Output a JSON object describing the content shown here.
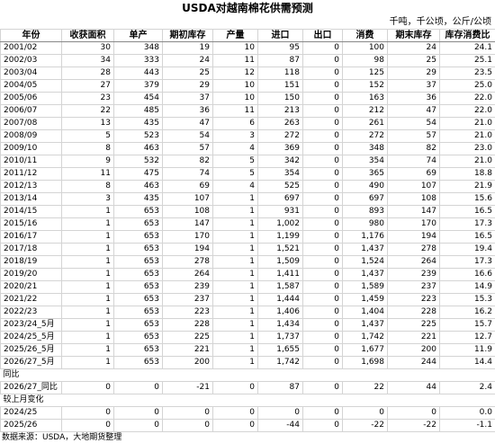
{
  "title": "USDA对越南棉花供需预测",
  "unit": "千吨，千公顷，公斤/公顷",
  "header": [
    "年份",
    "收获面积",
    "单产",
    "期初库存",
    "产量",
    "进口",
    "出口",
    "消费",
    "期末库存",
    "库存消费比"
  ],
  "rows": [
    [
      "2001/02",
      "30",
      "348",
      "19",
      "10",
      "95",
      "0",
      "100",
      "24",
      "24.1"
    ],
    [
      "2002/03",
      "34",
      "333",
      "24",
      "11",
      "87",
      "0",
      "98",
      "25",
      "25.1"
    ],
    [
      "2003/04",
      "28",
      "443",
      "25",
      "12",
      "118",
      "0",
      "125",
      "29",
      "23.5"
    ],
    [
      "2004/05",
      "27",
      "379",
      "29",
      "10",
      "151",
      "0",
      "152",
      "37",
      "25.0"
    ],
    [
      "2005/06",
      "23",
      "454",
      "37",
      "10",
      "150",
      "0",
      "163",
      "36",
      "22.0"
    ],
    [
      "2006/07",
      "22",
      "485",
      "36",
      "11",
      "213",
      "0",
      "212",
      "47",
      "22.0"
    ],
    [
      "2007/08",
      "13",
      "435",
      "47",
      "6",
      "263",
      "0",
      "261",
      "54",
      "21.0"
    ],
    [
      "2008/09",
      "5",
      "523",
      "54",
      "3",
      "272",
      "0",
      "272",
      "57",
      "21.0"
    ],
    [
      "2009/10",
      "8",
      "463",
      "57",
      "4",
      "369",
      "0",
      "348",
      "82",
      "23.0"
    ],
    [
      "2010/11",
      "9",
      "532",
      "82",
      "5",
      "342",
      "0",
      "354",
      "74",
      "21.0"
    ],
    [
      "2011/12",
      "11",
      "475",
      "74",
      "5",
      "354",
      "0",
      "365",
      "69",
      "18.8"
    ],
    [
      "2012/13",
      "8",
      "463",
      "69",
      "4",
      "525",
      "0",
      "490",
      "107",
      "21.9"
    ],
    [
      "2013/14",
      "3",
      "435",
      "107",
      "1",
      "697",
      "0",
      "697",
      "108",
      "15.6"
    ],
    [
      "2014/15",
      "1",
      "653",
      "108",
      "1",
      "931",
      "0",
      "893",
      "147",
      "16.5"
    ],
    [
      "2015/16",
      "1",
      "653",
      "147",
      "1",
      "1,002",
      "0",
      "980",
      "170",
      "17.3"
    ],
    [
      "2016/17",
      "1",
      "653",
      "170",
      "1",
      "1,199",
      "0",
      "1,176",
      "194",
      "16.5"
    ],
    [
      "2017/18",
      "1",
      "653",
      "194",
      "1",
      "1,521",
      "0",
      "1,437",
      "278",
      "19.4"
    ],
    [
      "2018/19",
      "1",
      "653",
      "278",
      "1",
      "1,509",
      "0",
      "1,524",
      "264",
      "17.3"
    ],
    [
      "2019/20",
      "1",
      "653",
      "264",
      "1",
      "1,411",
      "0",
      "1,437",
      "239",
      "16.6"
    ],
    [
      "2020/21",
      "1",
      "653",
      "239",
      "1",
      "1,587",
      "0",
      "1,589",
      "237",
      "14.9"
    ],
    [
      "2021/22",
      "1",
      "653",
      "237",
      "1",
      "1,444",
      "0",
      "1,459",
      "223",
      "15.3"
    ],
    [
      "2022/23",
      "1",
      "653",
      "223",
      "1",
      "1,406",
      "0",
      "1,404",
      "228",
      "16.2"
    ],
    [
      "2023/24_5月",
      "1",
      "653",
      "228",
      "1",
      "1,434",
      "0",
      "1,437",
      "225",
      "15.7"
    ],
    [
      "2024/25_5月",
      "1",
      "653",
      "225",
      "1",
      "1,737",
      "0",
      "1,742",
      "221",
      "12.7"
    ],
    [
      "2025/26_5月",
      "1",
      "653",
      "221",
      "1",
      "1,655",
      "0",
      "1,677",
      "200",
      "11.9"
    ],
    [
      "2026/27_5月",
      "1",
      "653",
      "200",
      "1",
      "1,742",
      "0",
      "1,698",
      "244",
      "14.4"
    ]
  ],
  "sections": [
    {
      "label": "同比",
      "rows": [
        [
          "2026/27_同比",
          "0",
          "0",
          "-21",
          "0",
          "87",
          "0",
          "22",
          "44",
          "2.4"
        ]
      ]
    },
    {
      "label": "较上月变化",
      "rows": [
        [
          "2024/25",
          "0",
          "0",
          "0",
          "0",
          "0",
          "0",
          "0",
          "0",
          "0.0"
        ],
        [
          "2025/26",
          "0",
          "0",
          "0",
          "0",
          "-44",
          "0",
          "-22",
          "-22",
          "-1.1"
        ]
      ]
    }
  ],
  "source": "数据来源：USDA，大地期货整理"
}
